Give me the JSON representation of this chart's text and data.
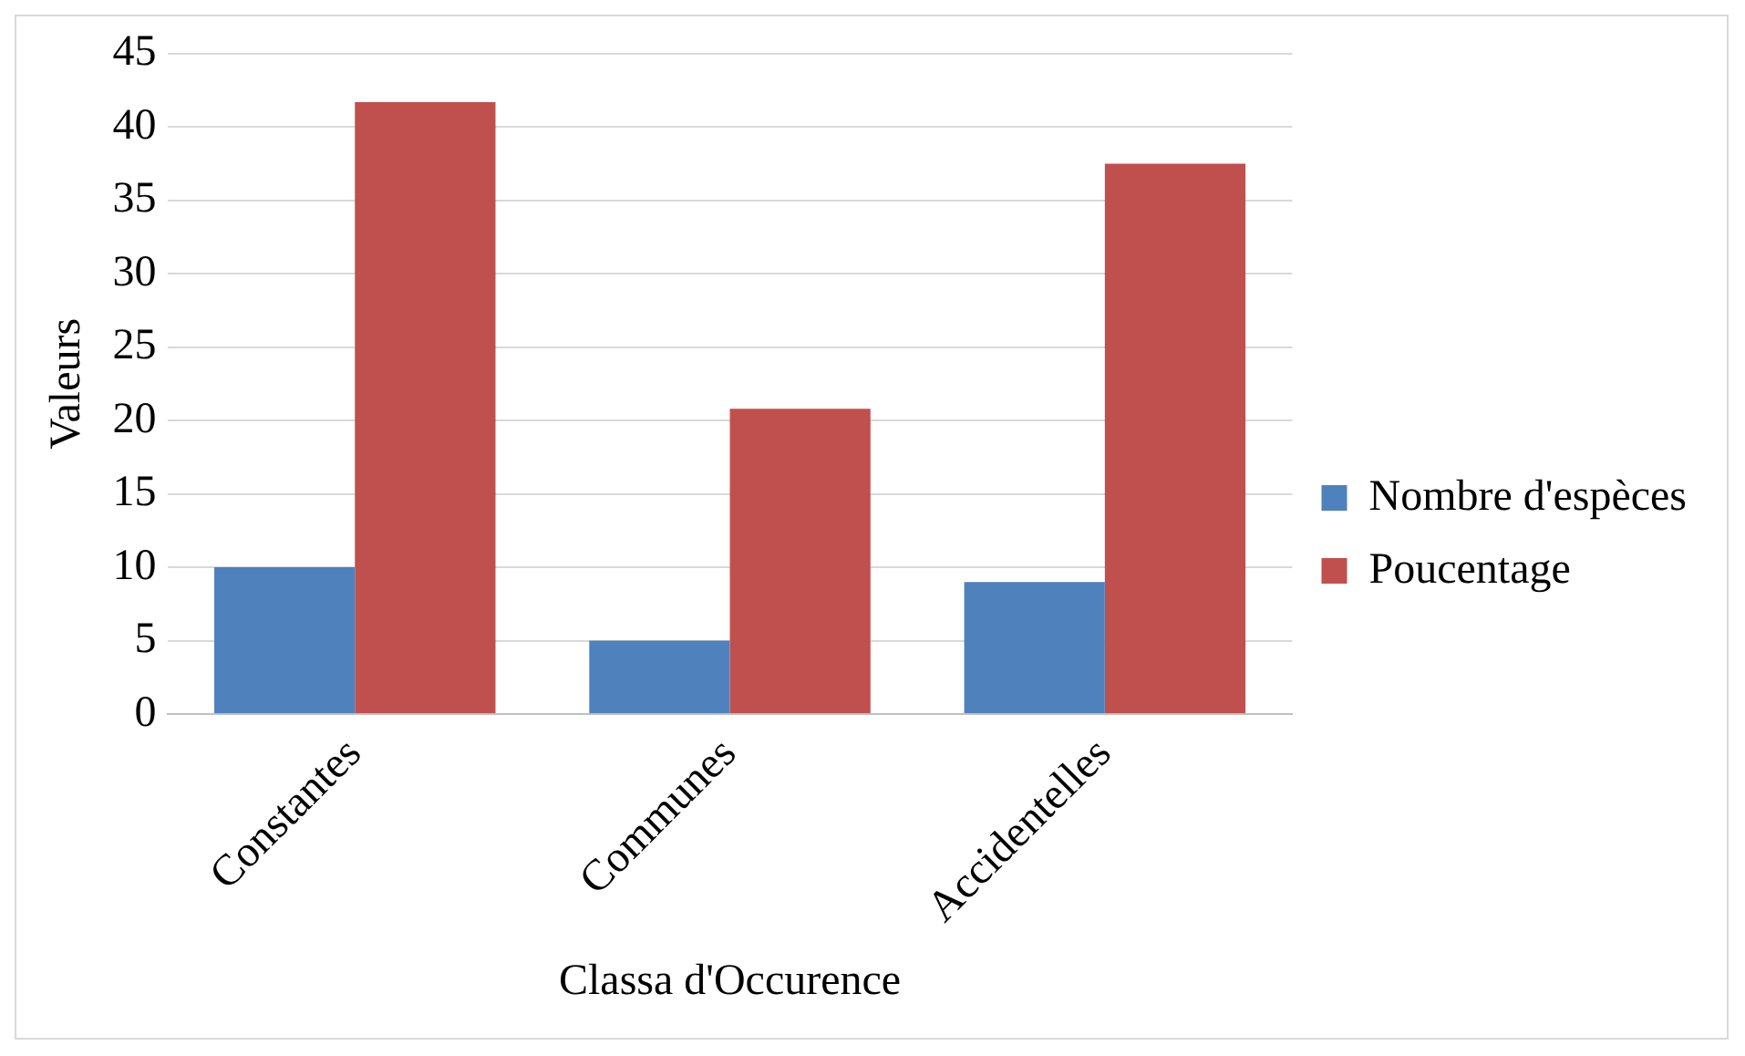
{
  "chart_data": {
    "type": "bar",
    "xlabel": "Classa d'Occurence",
    "ylabel": "Valeurs",
    "categories": [
      "Constantes",
      "Communes",
      "Accidentelles"
    ],
    "series": [
      {
        "name": "Nombre d'espèces",
        "color": "#4f81bd",
        "values": [
          10,
          5,
          9
        ]
      },
      {
        "name": "Poucentage",
        "color": "#c0504d",
        "values": [
          41.7,
          20.8,
          37.5
        ]
      }
    ],
    "ylim": [
      0,
      45
    ],
    "yticks": [
      0,
      5,
      10,
      15,
      20,
      25,
      30,
      35,
      40,
      45
    ],
    "grid": "y",
    "legend": "right"
  }
}
